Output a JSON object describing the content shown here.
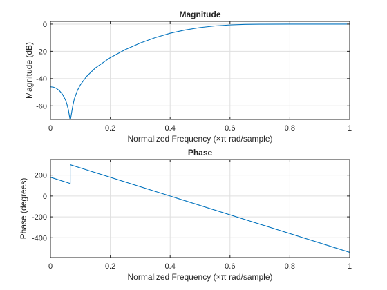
{
  "chart_data": [
    {
      "type": "line",
      "title": "Magnitude",
      "xlabel": "Normalized  Frequency   (×π  rad/sample)",
      "ylabel": "Magnitude (dB)",
      "xlim": [
        0,
        1
      ],
      "ylim": [
        -70,
        2
      ],
      "xticks": [
        0,
        0.2,
        0.4,
        0.6,
        0.8,
        1
      ],
      "xtick_labels": [
        "0",
        "0.2",
        "0.4",
        "0.6",
        "0.8",
        "1"
      ],
      "yticks": [
        0,
        -20,
        -40,
        -60
      ],
      "ytick_labels": [
        "0",
        "-20",
        "-40",
        "-60"
      ],
      "grid": true,
      "color": "#0072bd",
      "series": [
        {
          "x": [
            0,
            0.01,
            0.02,
            0.03,
            0.04,
            0.05,
            0.055,
            0.06,
            0.063,
            0.065,
            0.067,
            0.07,
            0.075,
            0.08,
            0.09,
            0.1,
            0.12,
            0.15,
            0.2,
            0.25,
            0.3,
            0.35,
            0.4,
            0.45,
            0.5,
            0.55,
            0.6,
            0.65,
            0.7,
            0.8,
            0.9,
            1
          ],
          "y": [
            -46,
            -46.3,
            -47.2,
            -48.9,
            -51.5,
            -55.6,
            -58.7,
            -63,
            -67,
            -69.5,
            -70,
            -66,
            -59.6,
            -54.8,
            -48.8,
            -44.6,
            -38.6,
            -32.2,
            -24.6,
            -18.7,
            -13.9,
            -9.9,
            -6.7,
            -4.3,
            -2.5,
            -1.3,
            -0.6,
            -0.2,
            -0.05,
            0,
            0,
            0
          ]
        }
      ]
    },
    {
      "type": "line",
      "title": "Phase",
      "xlabel": "Normalized  Frequency   (×π  rad/sample)",
      "ylabel": "Phase (degrees)",
      "xlim": [
        0,
        1
      ],
      "ylim": [
        -590,
        350
      ],
      "xticks": [
        0,
        0.2,
        0.4,
        0.6,
        0.8,
        1
      ],
      "xtick_labels": [
        "0",
        "0.2",
        "0.4",
        "0.6",
        "0.8",
        "1"
      ],
      "yticks": [
        200,
        0,
        -200,
        -400
      ],
      "ytick_labels": [
        "200",
        "0",
        "-200",
        "-400"
      ],
      "grid": true,
      "color": "#0072bd",
      "series": [
        {
          "x": [
            0,
            0.066,
            0.066,
            1
          ],
          "y": [
            180,
            120,
            300,
            -540
          ]
        }
      ]
    }
  ]
}
